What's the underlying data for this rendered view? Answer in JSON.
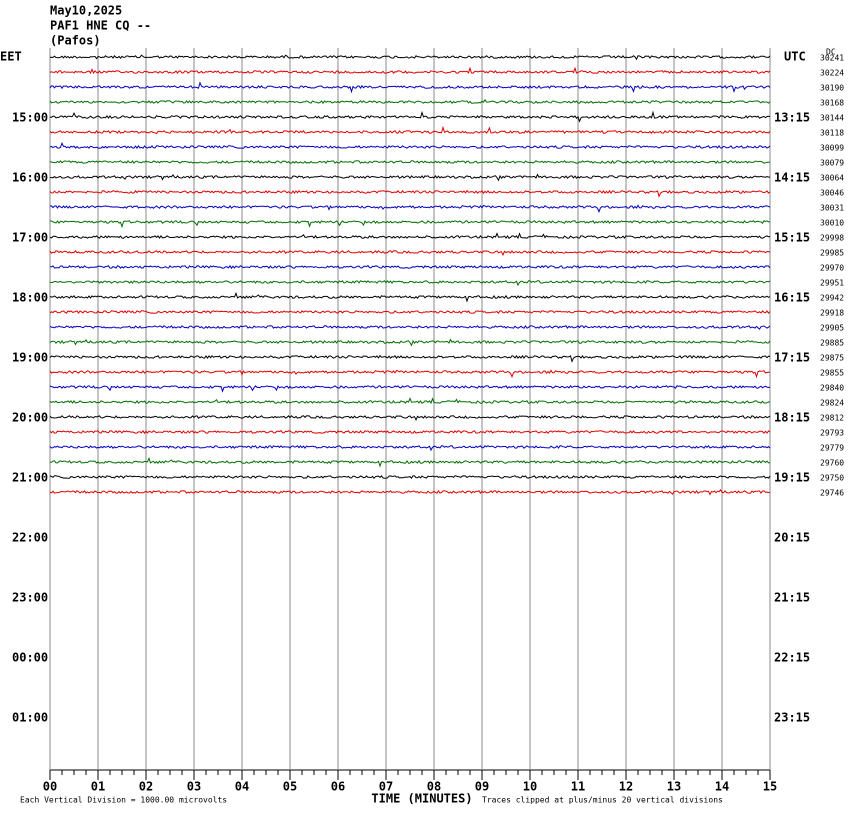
{
  "chart_data": {
    "type": "helicorder",
    "title": [
      "May10,2025",
      "PAF1 HNE CQ --",
      "(Pafos)"
    ],
    "left_label": "EET",
    "right_label": "UTC",
    "corner_note": "DC",
    "left_times": [
      "15:00",
      "16:00",
      "17:00",
      "18:00",
      "19:00",
      "20:00",
      "21:00",
      "22:00",
      "23:00",
      "00:00",
      "01:00"
    ],
    "right_times": [
      "13:15",
      "14:15",
      "15:15",
      "16:15",
      "17:15",
      "18:15",
      "19:15",
      "20:15",
      "21:15",
      "22:15",
      "23:15"
    ],
    "trace_labels": [
      30241,
      30224,
      30190,
      30168,
      30144,
      30118,
      30099,
      30079,
      30064,
      30046,
      30031,
      30010,
      29998,
      29985,
      29970,
      29951,
      29942,
      29918,
      29905,
      29885,
      29875,
      29855,
      29840,
      29824,
      29812,
      29793,
      29779,
      29760,
      29750,
      29746
    ],
    "colors": [
      "#000000",
      "#e00000",
      "#0000c0",
      "#007000"
    ],
    "xlim": [
      0,
      15
    ],
    "xticks": [
      {
        "value": 0,
        "label": "00"
      },
      {
        "value": 1,
        "label": "01"
      },
      {
        "value": 2,
        "label": "02"
      },
      {
        "value": 3,
        "label": "03"
      },
      {
        "value": 4,
        "label": "04"
      },
      {
        "value": 5,
        "label": "05"
      },
      {
        "value": 6,
        "label": "06"
      },
      {
        "value": 7,
        "label": "07"
      },
      {
        "value": 8,
        "label": "08"
      },
      {
        "value": 9,
        "label": "09"
      },
      {
        "value": 10,
        "label": "10"
      },
      {
        "value": 11,
        "label": "11"
      },
      {
        "value": 12,
        "label": "12"
      },
      {
        "value": 13,
        "label": "13"
      },
      {
        "value": 14,
        "label": "14"
      },
      {
        "value": 15,
        "label": "15"
      }
    ],
    "xlabel": "TIME (MINUTES)",
    "notes": [
      "Each Vertical Division = 1000.00 microvolts",
      "Traces clipped at plus/minus 20 vertical divisions"
    ]
  }
}
